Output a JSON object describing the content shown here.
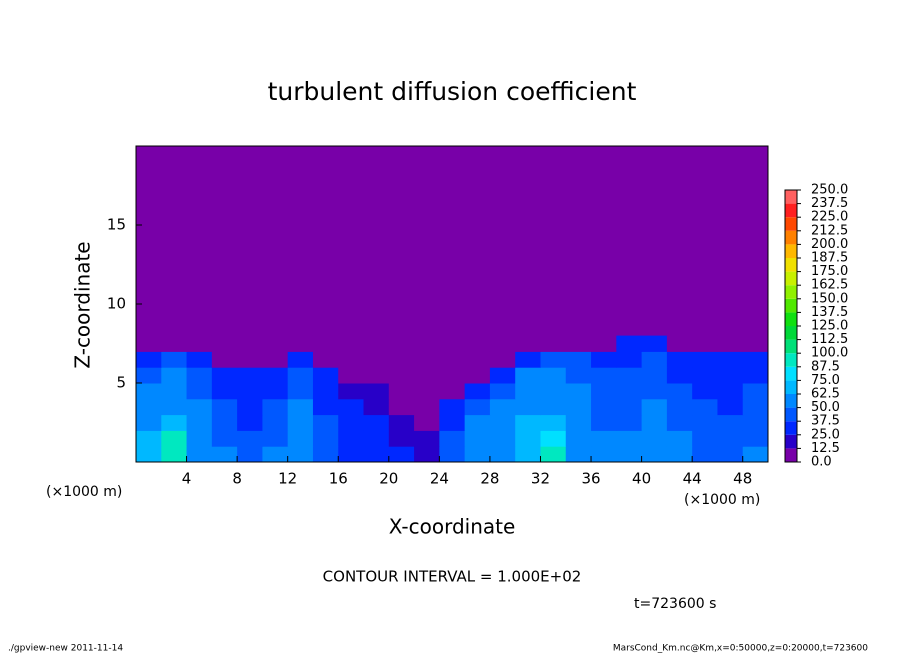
{
  "chart_data": {
    "type": "heatmap",
    "title": "turbulent diffusion coefficient",
    "x_label": "X-coordinate",
    "y_label": "Z-coordinate",
    "x_unit_labels": [
      "(×1000 m)",
      "(×1000 m)"
    ],
    "annotations": [
      "CONTOUR INTERVAL = 1.000E+02",
      "t=723600 s"
    ],
    "footer": [
      "./gpview-new  2011-11-14",
      "MarsCond_Km.nc@Km,x=0:50000,z=0:20000,t=723600"
    ],
    "background_color": "#7800a8",
    "xlim": [
      0,
      50
    ],
    "ylim": [
      0,
      20
    ],
    "xticks": [
      4,
      8,
      12,
      16,
      20,
      24,
      28,
      32,
      36,
      40,
      44,
      48
    ],
    "yticks": [
      5,
      10,
      15
    ],
    "x_edges": [
      0,
      2,
      4,
      6,
      8,
      10,
      12,
      14,
      16,
      18,
      20,
      22,
      24,
      26,
      28,
      30,
      32,
      34,
      36,
      38,
      40,
      42,
      44,
      46,
      48,
      50
    ],
    "z_edges": [
      0,
      1,
      2,
      3,
      4,
      5,
      6,
      7,
      8
    ],
    "values": [
      [
        70,
        95,
        60,
        50,
        40,
        50,
        55,
        45,
        30,
        30,
        25,
        20,
        45,
        55,
        60,
        70,
        95,
        60,
        50,
        50,
        55,
        50,
        45,
        45,
        50
      ],
      [
        65,
        90,
        55,
        45,
        40,
        45,
        55,
        40,
        30,
        25,
        20,
        15,
        40,
        50,
        55,
        65,
        85,
        55,
        50,
        50,
        55,
        50,
        45,
        40,
        45
      ],
      [
        60,
        70,
        55,
        45,
        35,
        45,
        50,
        40,
        25,
        25,
        15,
        0,
        35,
        50,
        55,
        65,
        70,
        55,
        45,
        45,
        50,
        45,
        40,
        40,
        45
      ],
      [
        55,
        60,
        50,
        40,
        35,
        40,
        50,
        35,
        25,
        20,
        0,
        0,
        25,
        45,
        50,
        60,
        60,
        50,
        45,
        45,
        50,
        45,
        40,
        35,
        40
      ],
      [
        50,
        55,
        45,
        35,
        30,
        35,
        45,
        30,
        20,
        15,
        0,
        0,
        0,
        35,
        45,
        55,
        55,
        50,
        40,
        45,
        45,
        40,
        35,
        35,
        40
      ],
      [
        45,
        50,
        40,
        30,
        25,
        30,
        40,
        25,
        0,
        0,
        0,
        0,
        0,
        0,
        35,
        50,
        50,
        45,
        40,
        40,
        45,
        35,
        35,
        30,
        35
      ],
      [
        35,
        40,
        30,
        0,
        0,
        0,
        30,
        0,
        0,
        0,
        0,
        0,
        0,
        0,
        0,
        35,
        40,
        40,
        35,
        35,
        40,
        30,
        30,
        25,
        30
      ],
      [
        0,
        0,
        0,
        0,
        0,
        0,
        0,
        0,
        0,
        0,
        0,
        0,
        0,
        0,
        0,
        0,
        0,
        0,
        0,
        25,
        30,
        0,
        0,
        0,
        0
      ]
    ],
    "colorbar_lim": [
      0,
      250
    ],
    "colorbar_ticks": [
      {
        "value": 0,
        "label": "0.0"
      },
      {
        "value": 12.5,
        "label": "12.5"
      },
      {
        "value": 25,
        "label": "25.0"
      },
      {
        "value": 37.5,
        "label": "37.5"
      },
      {
        "value": 50,
        "label": "50.0"
      },
      {
        "value": 62.5,
        "label": "62.5"
      },
      {
        "value": 75,
        "label": "75.0"
      },
      {
        "value": 87.5,
        "label": "87.5"
      },
      {
        "value": 100,
        "label": "100.0"
      },
      {
        "value": 112.5,
        "label": "112.5"
      },
      {
        "value": 125,
        "label": "125.0"
      },
      {
        "value": 137.5,
        "label": "137.5"
      },
      {
        "value": 150,
        "label": "150.0"
      },
      {
        "value": 162.5,
        "label": "162.5"
      },
      {
        "value": 175,
        "label": "175.0"
      },
      {
        "value": 187.5,
        "label": "187.5"
      },
      {
        "value": 200,
        "label": "200.0"
      },
      {
        "value": 212.5,
        "label": "212.5"
      },
      {
        "value": 225,
        "label": "225.0"
      },
      {
        "value": 237.5,
        "label": "237.5"
      },
      {
        "value": 250,
        "label": "250.0"
      }
    ],
    "colorbar_colors": [
      "#7800a8",
      "#2800c8",
      "#0028ff",
      "#0058ff",
      "#0088ff",
      "#00b8ff",
      "#00e0ff",
      "#00e8c0",
      "#00e078",
      "#00d838",
      "#10e010",
      "#50e800",
      "#90f000",
      "#c8f000",
      "#f0e000",
      "#ffb800",
      "#ff8000",
      "#ff4800",
      "#ff2020",
      "#ff6060"
    ]
  }
}
